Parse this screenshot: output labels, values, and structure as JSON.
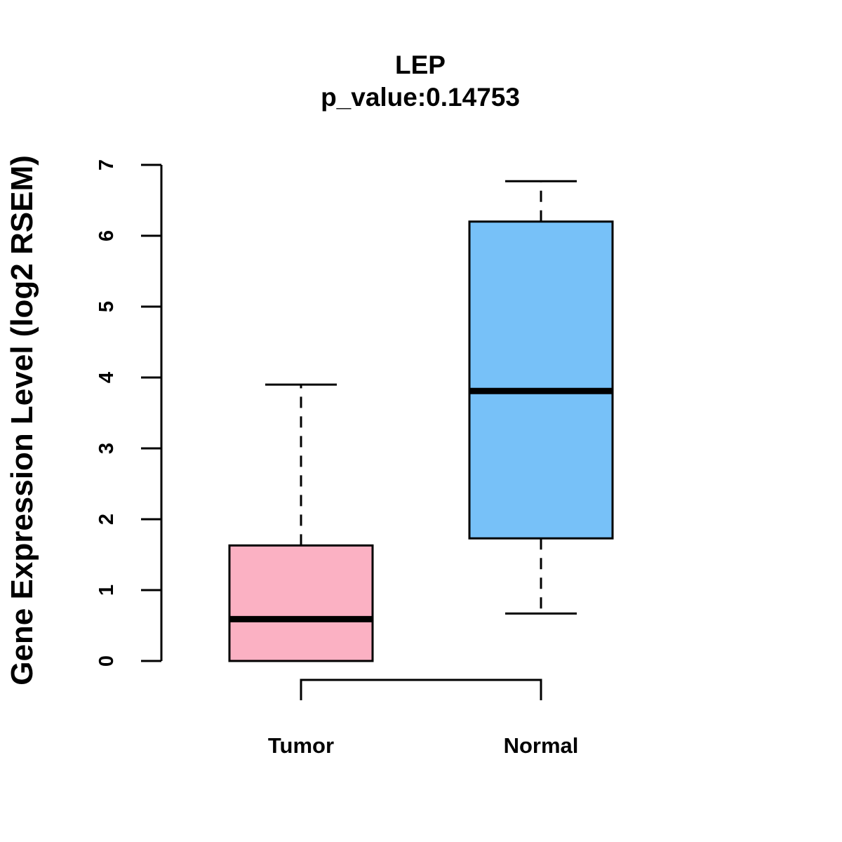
{
  "chart_data": {
    "type": "boxplot",
    "title": "LEP",
    "subtitle": "p_value:0.14753",
    "xlabel": "",
    "ylabel": "Gene Expression Level (log2 RSEM)",
    "ylim": [
      0,
      7
    ],
    "yticks": [
      0,
      1,
      2,
      3,
      4,
      5,
      6,
      7
    ],
    "grid": false,
    "categories": [
      "Tumor",
      "Normal"
    ],
    "boxes": [
      {
        "name": "Tumor",
        "whisker_low": 0.0,
        "q1": 0.0,
        "median": 0.59,
        "q3": 1.63,
        "whisker_high": 3.9,
        "color": "#FBB1C3"
      },
      {
        "name": "Normal",
        "whisker_low": 0.67,
        "q1": 1.73,
        "median": 3.81,
        "q3": 6.2,
        "whisker_high": 6.77,
        "color": "#77C1F8"
      }
    ],
    "comparison_bracket": {
      "from": "Tumor",
      "to": "Normal"
    }
  }
}
